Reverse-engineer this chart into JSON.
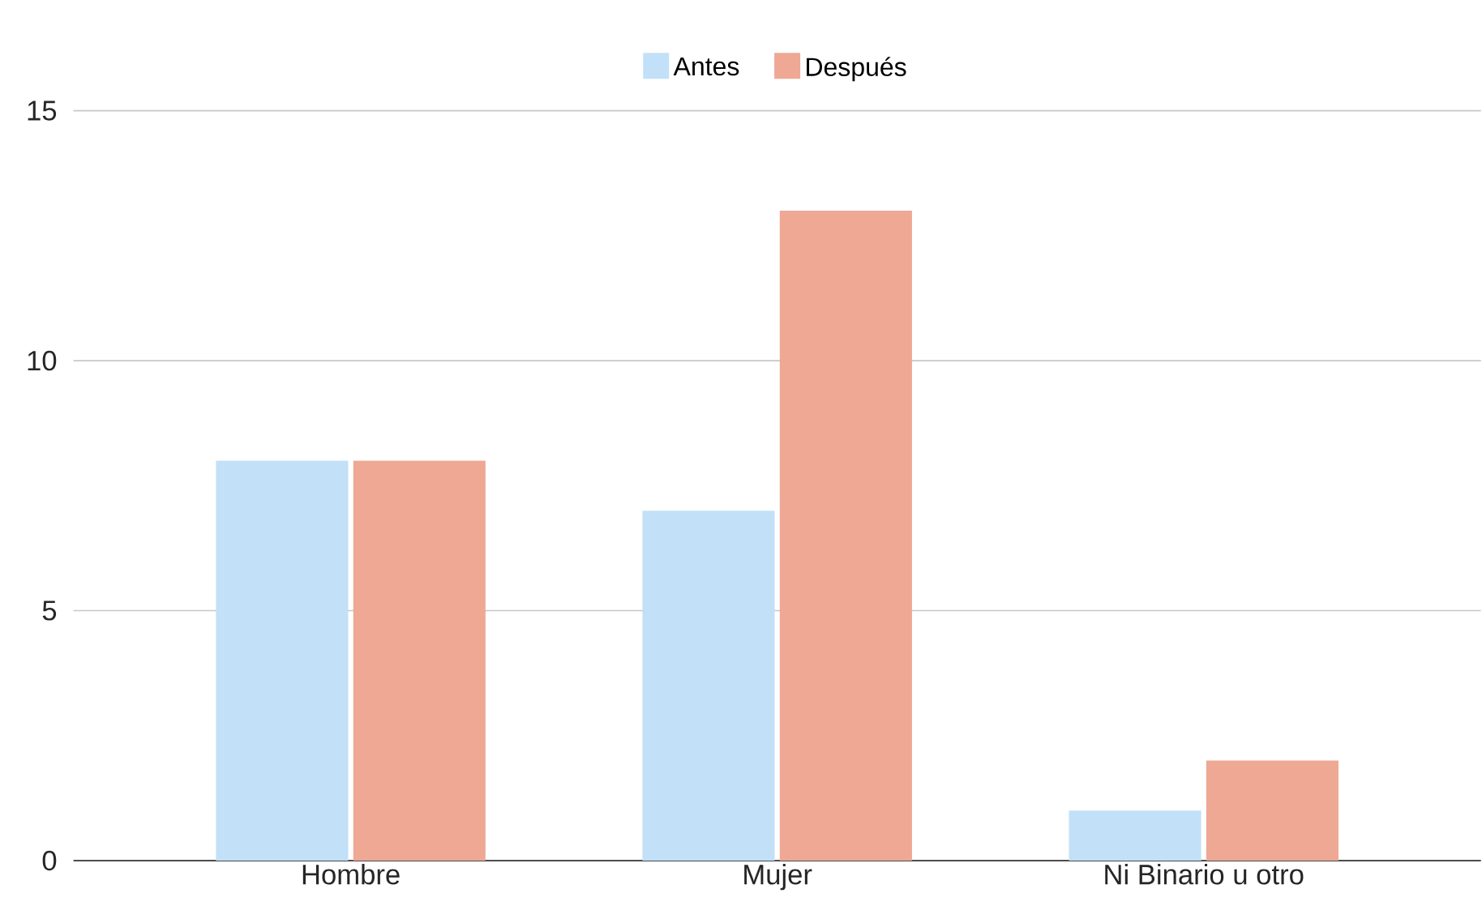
{
  "chart_data": {
    "type": "bar",
    "categories": [
      "Hombre",
      "Mujer",
      "Ni Binario u otro"
    ],
    "series": [
      {
        "name": "Antes",
        "color": "#c2e0f7",
        "values": [
          8,
          7,
          1
        ]
      },
      {
        "name": "Después",
        "color": "#eea894",
        "values": [
          8,
          13,
          2
        ]
      }
    ],
    "ylim": [
      0,
      15
    ],
    "yticks": [
      0,
      5,
      10,
      15
    ],
    "grid": "y",
    "legend": "top"
  }
}
